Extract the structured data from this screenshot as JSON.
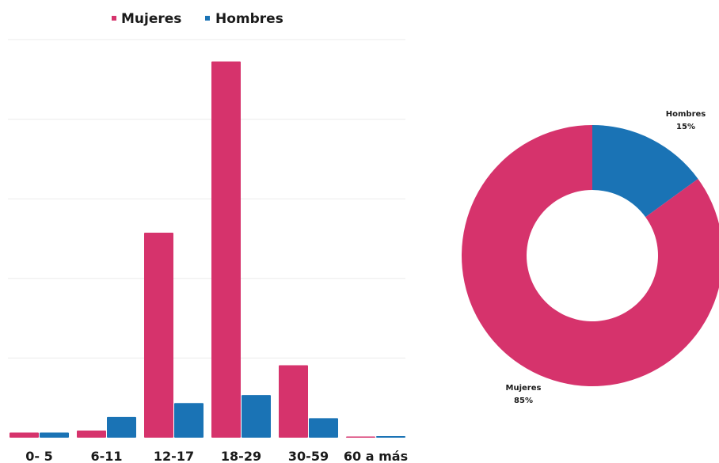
{
  "chart_data": [
    {
      "type": "bar",
      "categories": [
        "0- 5",
        "6-11",
        "12-17",
        "18-29",
        "30-59",
        "60 a más"
      ],
      "series": [
        {
          "name": "Mujeres",
          "color": "#D6336C",
          "values": [
            1.3,
            1.8,
            51.5,
            94.5,
            18.2,
            0.3
          ]
        },
        {
          "name": "Hombres",
          "color": "#1A73B5",
          "values": [
            1.3,
            5.2,
            8.7,
            10.7,
            4.9,
            0.4
          ]
        }
      ],
      "ylim": [
        0,
        100
      ],
      "grid": true,
      "legend": "top-center"
    },
    {
      "type": "pie",
      "hole": true,
      "slices": [
        {
          "name": "Hombres",
          "label": "15%",
          "value": 15,
          "color": "#1A73B5"
        },
        {
          "name": "Mujeres",
          "label": "85%",
          "value": 85,
          "color": "#D6336C"
        }
      ]
    }
  ]
}
